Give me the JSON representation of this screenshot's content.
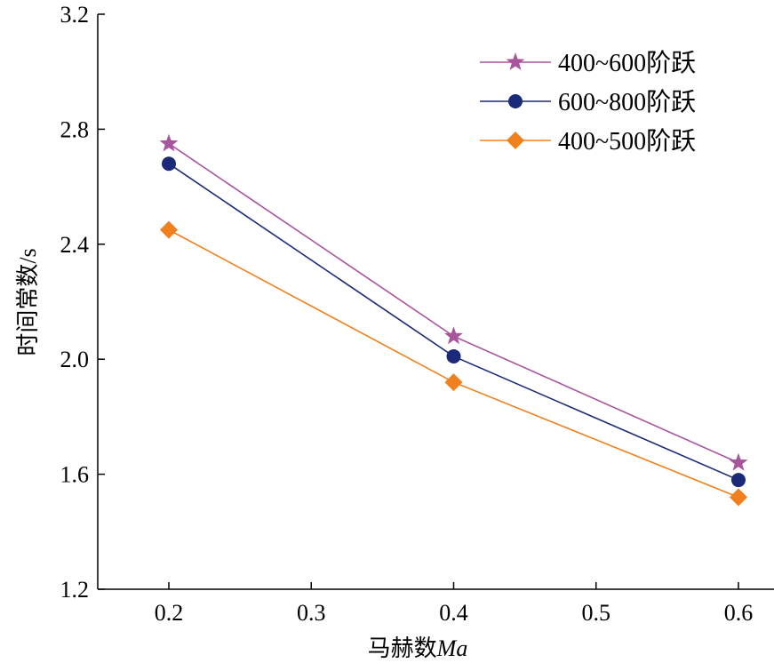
{
  "chart_data": {
    "type": "line",
    "title": "",
    "xlabel": "马赫数Ma",
    "xlabel_prefix": "马赫数",
    "xlabel_italic": "Ma",
    "ylabel": "时间常数/s",
    "xlim": [
      0.15,
      0.65
    ],
    "ylim": [
      1.2,
      3.2
    ],
    "xticks": [
      "0.2",
      "0.3",
      "0.4",
      "0.5",
      "0.6"
    ],
    "yticks": [
      "1.2",
      "1.6",
      "2.0",
      "2.4",
      "2.8",
      "3.2"
    ],
    "grid": false,
    "legend_position": "top-right",
    "x": [
      0.2,
      0.4,
      0.6
    ],
    "series": [
      {
        "name": "400~600阶跃",
        "marker": "star",
        "color": "#a9559e",
        "values": [
          2.75,
          2.08,
          1.64
        ]
      },
      {
        "name": "600~800阶跃",
        "marker": "circle",
        "color": "#1b2a78",
        "values": [
          2.68,
          2.01,
          1.58
        ]
      },
      {
        "name": "400~500阶跃",
        "marker": "diamond",
        "color": "#f0801e",
        "values": [
          2.45,
          1.92,
          1.52
        ]
      }
    ]
  }
}
